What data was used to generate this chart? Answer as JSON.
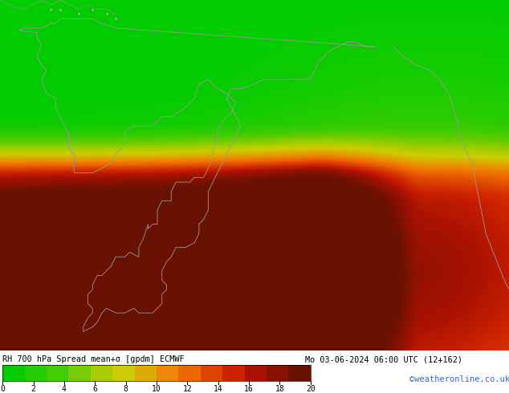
{
  "title_left": "RH 700 hPa Spread mean+σ [gpdm] ECMWF",
  "title_right": "Mo 03-06-2024 06:00 UTC (12+162)",
  "watermark": "©weatheronline.co.uk",
  "colorbar_ticks": [
    0,
    2,
    4,
    6,
    8,
    10,
    12,
    14,
    16,
    18,
    20
  ],
  "colorbar_colors": [
    "#00cc00",
    "#22cc00",
    "#44cc00",
    "#77cc00",
    "#aacc00",
    "#cccc00",
    "#ddaa00",
    "#ee8800",
    "#ee6600",
    "#dd4400",
    "#cc2200",
    "#aa1100",
    "#881100",
    "#661100"
  ],
  "bg_color": "#ffffff",
  "map_bg": "#00ee00",
  "font_color_title": "#000000",
  "font_color_watermark": "#3366cc",
  "figsize": [
    6.34,
    4.9
  ],
  "dpi": 100,
  "lon_min": -85,
  "lon_max": 25,
  "lat_min": -60,
  "lat_max": 15
}
